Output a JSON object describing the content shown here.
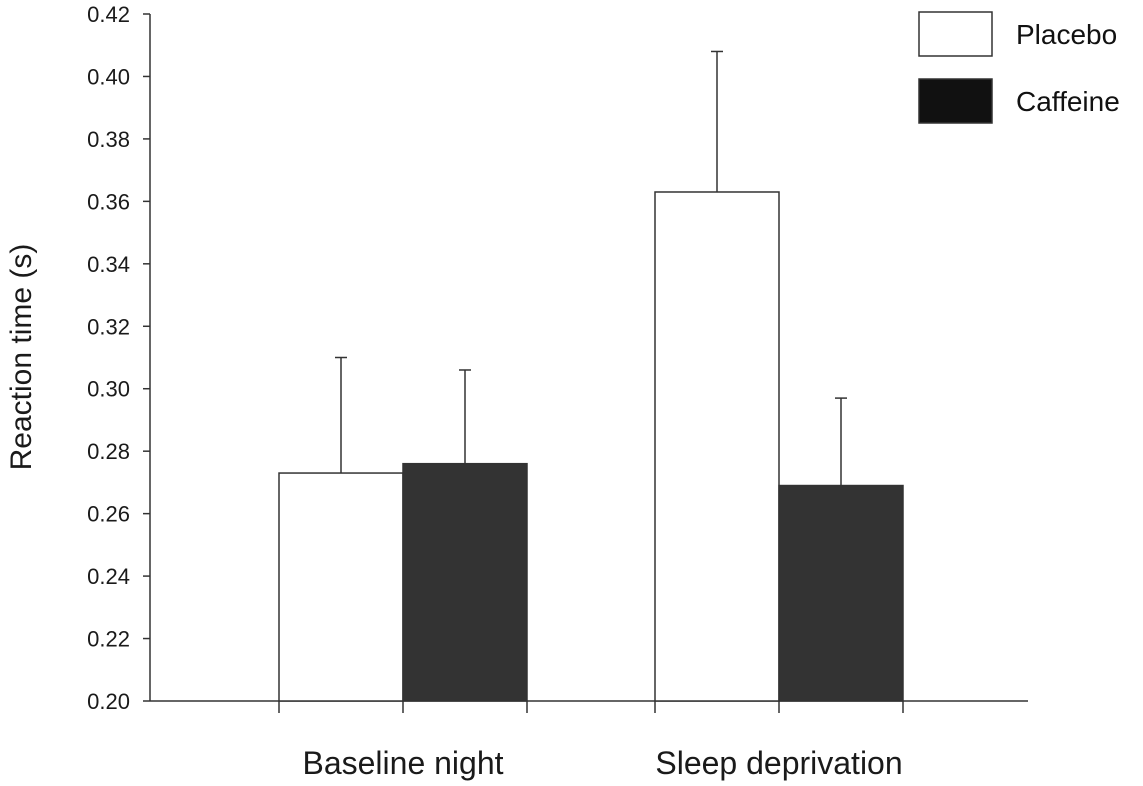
{
  "chart_data": {
    "type": "bar",
    "ylabel": "Reaction time (s)",
    "xlabel": "",
    "ylim": [
      0.2,
      0.42
    ],
    "yticks": [
      "0.20",
      "0.22",
      "0.24",
      "0.26",
      "0.28",
      "0.30",
      "0.32",
      "0.34",
      "0.36",
      "0.38",
      "0.40",
      "0.42"
    ],
    "categories": [
      "Baseline night",
      "Sleep deprivation"
    ],
    "series": [
      {
        "name": "Placebo",
        "values": [
          0.273,
          0.363
        ],
        "error_upper": [
          0.31,
          0.408
        ],
        "color": "#ffffff",
        "stroke": "#333333"
      },
      {
        "name": "Caffeine",
        "values": [
          0.276,
          0.269
        ],
        "error_upper": [
          0.306,
          0.297
        ],
        "color": "#333333",
        "stroke": "#333333"
      }
    ],
    "legend": {
      "placement": "top-right",
      "items": [
        "Placebo",
        "Caffeine"
      ]
    },
    "grid": false
  }
}
